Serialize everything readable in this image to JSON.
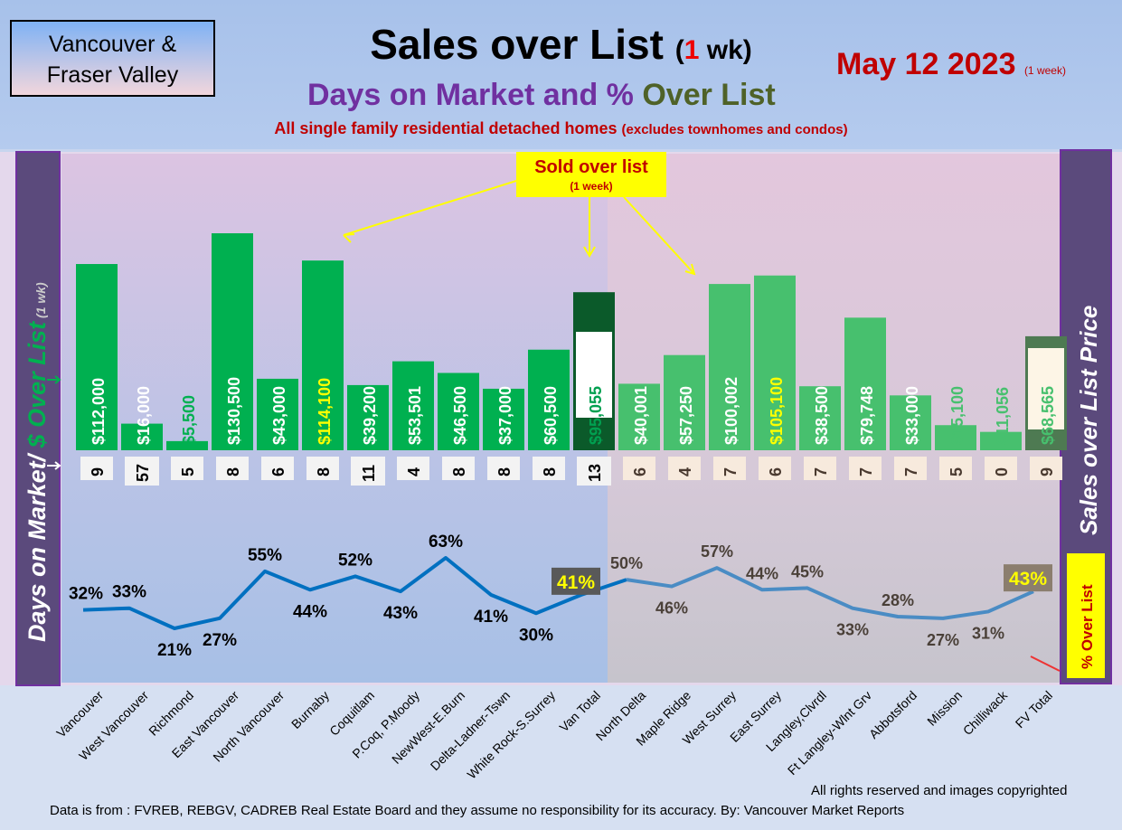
{
  "header": {
    "logo_line1": "Vancouver &",
    "logo_line2": "Fraser Valley",
    "title": "Sales over List",
    "title_paren_open": "(",
    "title_num": "1",
    "title_unit": " wk)",
    "subtitle_a": "Days on Market and % ",
    "subtitle_b": "Over List",
    "note": "All single family residential detached homes ",
    "note_small": "(excludes townhomes and condos)",
    "date": "May 12  2023 ",
    "date_small": "(1 week)"
  },
  "callout": {
    "title": "Sold over list",
    "sub": "(1 week)"
  },
  "left_axis": {
    "a": "Days on Market/",
    "b": " $ Over List",
    "c": " (1 wk)"
  },
  "right_axis": "Sales over List Price",
  "pct_legend": "% Over List",
  "footer": {
    "rights": "All rights reserved and  images copyrighted",
    "source": "Data is from : FVREB, REBGV, CADREB Real Estate Board and they assume no responsibility for its accuracy. By: Vancouver Market Reports"
  },
  "colors": {
    "bar": "#00b050",
    "bar_fv": "#47c06e",
    "total_van": "#0b5a2a",
    "total_fv": "#4e7a52",
    "line_van": "#0070c0",
    "line_fv": "#4a8cc4"
  },
  "chart_data": {
    "type": "bar+line",
    "categories": [
      "Vancouver",
      "West Vancouver",
      "Richmond",
      "East Vancouver",
      "North Vancouver",
      "Burnaby",
      "Coquitlam",
      "P.Coq, P.Moody",
      "NewWest-E.Burn",
      "Delta-Ladner-Tswn",
      "White Rock-S.Surrey",
      "Van Total",
      "North Delta",
      "Maple Ridge",
      "West Surrey",
      "East Surrey",
      "Langley,Clvrdl",
      "Ft Langley-Wlnt Grv",
      "Abbotsford",
      "Mission",
      "Chilliwack",
      "FV Total"
    ],
    "over_list_labels": [
      "$112,000",
      "$16,000",
      "$5,500",
      "$130,500",
      "$43,000",
      "$114,100",
      "$39,200",
      "$53,501",
      "$46,500",
      "$37,000",
      "$60,500",
      "$95,055",
      "$40,001",
      "$57,250",
      "$100,002",
      "$105,100",
      "$38,500",
      "$79,748",
      "$33,000",
      "$15,100",
      "$11,056",
      "$68,565"
    ],
    "over_list": [
      112000,
      16000,
      5500,
      130500,
      43000,
      114100,
      39200,
      53501,
      46500,
      37000,
      60500,
      95055,
      40001,
      57250,
      100002,
      105100,
      38500,
      79748,
      33000,
      15100,
      11056,
      68565
    ],
    "days_on_market": [
      "9",
      "57",
      "5",
      "8",
      "6",
      "8",
      "11",
      "4",
      "8",
      "8",
      "8",
      "13",
      "6",
      "4",
      "7",
      "6",
      "7",
      "7",
      "7",
      "5",
      "0",
      "9"
    ],
    "pct_over_list": [
      32,
      33,
      21,
      27,
      55,
      44,
      52,
      43,
      63,
      41,
      30,
      41,
      50,
      46,
      57,
      44,
      45,
      33,
      28,
      27,
      31,
      43
    ],
    "pct_labels": [
      "32%",
      "33%",
      "21%",
      "27%",
      "55%",
      "44%",
      "52%",
      "43%",
      "63%",
      "41%",
      "30%",
      "41%",
      "50%",
      "46%",
      "57%",
      "44%",
      "45%",
      "33%",
      "28%",
      "27%",
      "31%",
      "43%"
    ]
  }
}
